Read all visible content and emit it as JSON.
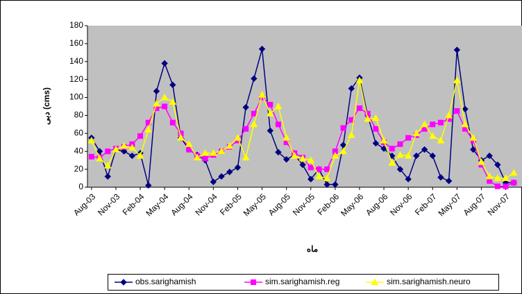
{
  "chart_data": {
    "type": "line",
    "x_label": "ماه",
    "y_label": "دبی (cms)",
    "categories": [
      "Aug-03",
      null,
      null,
      "Nov-03",
      null,
      null,
      "Feb-04",
      null,
      null,
      "May-04",
      null,
      null,
      "Aug-04",
      null,
      null,
      "Nov-04",
      null,
      null,
      "Feb-05",
      null,
      null,
      "May-05",
      null,
      null,
      "Aug-05",
      null,
      null,
      "Nov-05",
      null,
      null,
      "Feb-06",
      null,
      null,
      "May-06",
      null,
      null,
      "Aug-06",
      null,
      null,
      "Nov-06",
      null,
      null,
      "Feb-07",
      null,
      null,
      "May-07",
      null,
      null,
      "Aug-07",
      null,
      null,
      "Nov-07",
      null
    ],
    "series": [
      {
        "name": "obs.sarighamish",
        "color": "#000080",
        "marker": "diamond",
        "values": [
          55,
          40,
          12,
          42,
          40,
          35,
          38,
          2,
          107,
          138,
          114,
          55,
          42,
          36,
          30,
          6,
          12,
          17,
          22,
          89,
          121,
          154,
          63,
          39,
          31,
          36,
          25,
          9,
          20,
          3,
          3,
          47,
          110,
          122,
          80,
          49,
          43,
          35,
          20,
          9,
          35,
          42,
          35,
          11,
          7,
          153,
          87,
          42,
          30,
          35,
          25,
          5,
          5
        ]
      },
      {
        "name": "sim.sarighamish.reg",
        "color": "#ff00ff",
        "marker": "square",
        "values": [
          34,
          33,
          40,
          43,
          45,
          48,
          57,
          72,
          88,
          90,
          72,
          60,
          42,
          35,
          32,
          36,
          40,
          45,
          52,
          65,
          82,
          100,
          92,
          70,
          50,
          38,
          33,
          22,
          20,
          20,
          40,
          66,
          75,
          88,
          82,
          65,
          50,
          43,
          48,
          55,
          58,
          65,
          70,
          72,
          76,
          85,
          65,
          52,
          25,
          7,
          1,
          1,
          5
        ]
      },
      {
        "name": "sim.sarighamish.neuro",
        "color": "#ffff00",
        "marker": "triangle",
        "values": [
          52,
          32,
          24,
          42,
          46,
          44,
          35,
          64,
          93,
          100,
          95,
          55,
          48,
          33,
          38,
          38,
          40,
          46,
          55,
          33,
          70,
          103,
          82,
          90,
          55,
          35,
          32,
          30,
          12,
          10,
          35,
          40,
          58,
          119,
          76,
          77,
          52,
          27,
          36,
          35,
          60,
          70,
          57,
          52,
          80,
          119,
          70,
          55,
          28,
          12,
          10,
          10,
          16
        ]
      }
    ],
    "ylim": [
      0,
      180
    ],
    "yticks": [
      0,
      20,
      40,
      60,
      80,
      100,
      120,
      140,
      160,
      180
    ],
    "grid": false,
    "legend": "bottom",
    "plot_background": "#c0c0c0"
  }
}
